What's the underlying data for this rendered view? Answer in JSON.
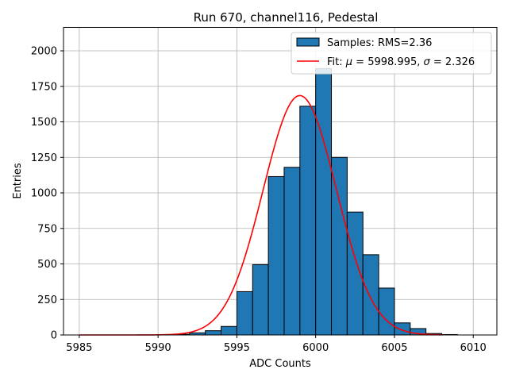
{
  "chart_data": {
    "type": "bar",
    "title": "Run 670, channel116, Pedestal",
    "xlabel": "ADC Counts",
    "ylabel": "Entries",
    "xlim": [
      5984,
      6011.5
    ],
    "ylim": [
      0,
      2165
    ],
    "xticks": [
      5985,
      5990,
      5995,
      6000,
      6005,
      6010
    ],
    "yticks": [
      0,
      250,
      500,
      750,
      1000,
      1250,
      1500,
      1750,
      2000
    ],
    "grid": true,
    "legend_position": "top-right",
    "bar_color": "#1f77b4",
    "fit_color": "#ff0000",
    "histogram": {
      "name": "Samples: RMS=2.36",
      "bin_width": 1,
      "bins": [
        {
          "x0": 5991,
          "value": 5
        },
        {
          "x0": 5992,
          "value": 15
        },
        {
          "x0": 5993,
          "value": 30
        },
        {
          "x0": 5994,
          "value": 60
        },
        {
          "x0": 5995,
          "value": 305
        },
        {
          "x0": 5996,
          "value": 495
        },
        {
          "x0": 5997,
          "value": 1115
        },
        {
          "x0": 5998,
          "value": 1180
        },
        {
          "x0": 5999,
          "value": 1610
        },
        {
          "x0": 6000,
          "value": 1875
        },
        {
          "x0": 6001,
          "value": 1250
        },
        {
          "x0": 6002,
          "value": 865
        },
        {
          "x0": 6003,
          "value": 565
        },
        {
          "x0": 6004,
          "value": 330
        },
        {
          "x0": 6005,
          "value": 85
        },
        {
          "x0": 6006,
          "value": 45
        },
        {
          "x0": 6007,
          "value": 10
        },
        {
          "x0": 6008,
          "value": 3
        }
      ]
    },
    "fit": {
      "name": "Fit: μ = 5998.995, σ = 2.326",
      "name_parts": [
        "Fit: ",
        "μ",
        " = 5998.995, ",
        "σ",
        " = 2.326"
      ],
      "mu": 5998.995,
      "sigma": 2.326,
      "amplitude": 1685,
      "x_range": [
        5985,
        6008
      ]
    }
  }
}
